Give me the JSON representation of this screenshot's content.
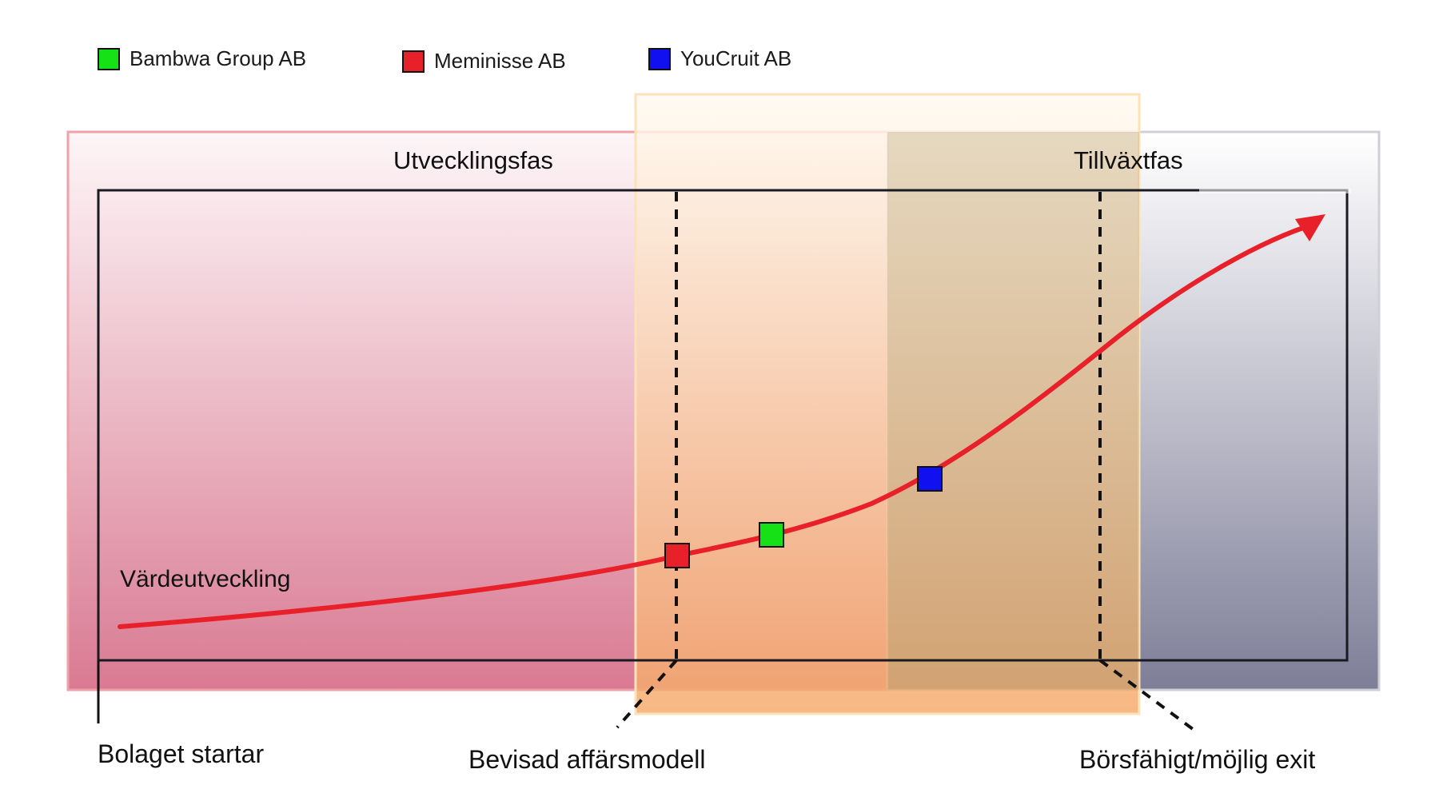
{
  "legend": [
    {
      "label": "Bambwa Group AB",
      "color": "#16e016"
    },
    {
      "label": "Meminisse AB",
      "color": "#e8202a"
    },
    {
      "label": "YouCruit AB",
      "color": "#1010f0"
    }
  ],
  "phases": {
    "development": "Utvecklingsfas",
    "growth": "Tillväxtfas"
  },
  "curve_label": "Värdeutveckling",
  "milestones": {
    "start": "Bolaget startar",
    "proven": "Bevisad affärsmodell",
    "exit": "Börsfähigt/möjlig exit"
  },
  "colors": {
    "curve": "#e8202a",
    "dev_zone_top": "#fdf3f5",
    "dev_zone_bottom": "#d97a92",
    "proof_zone_top": "#fff6e6",
    "proof_zone_bottom": "#f7b978",
    "growth_zone_bottom": "#8a8aa2"
  }
}
